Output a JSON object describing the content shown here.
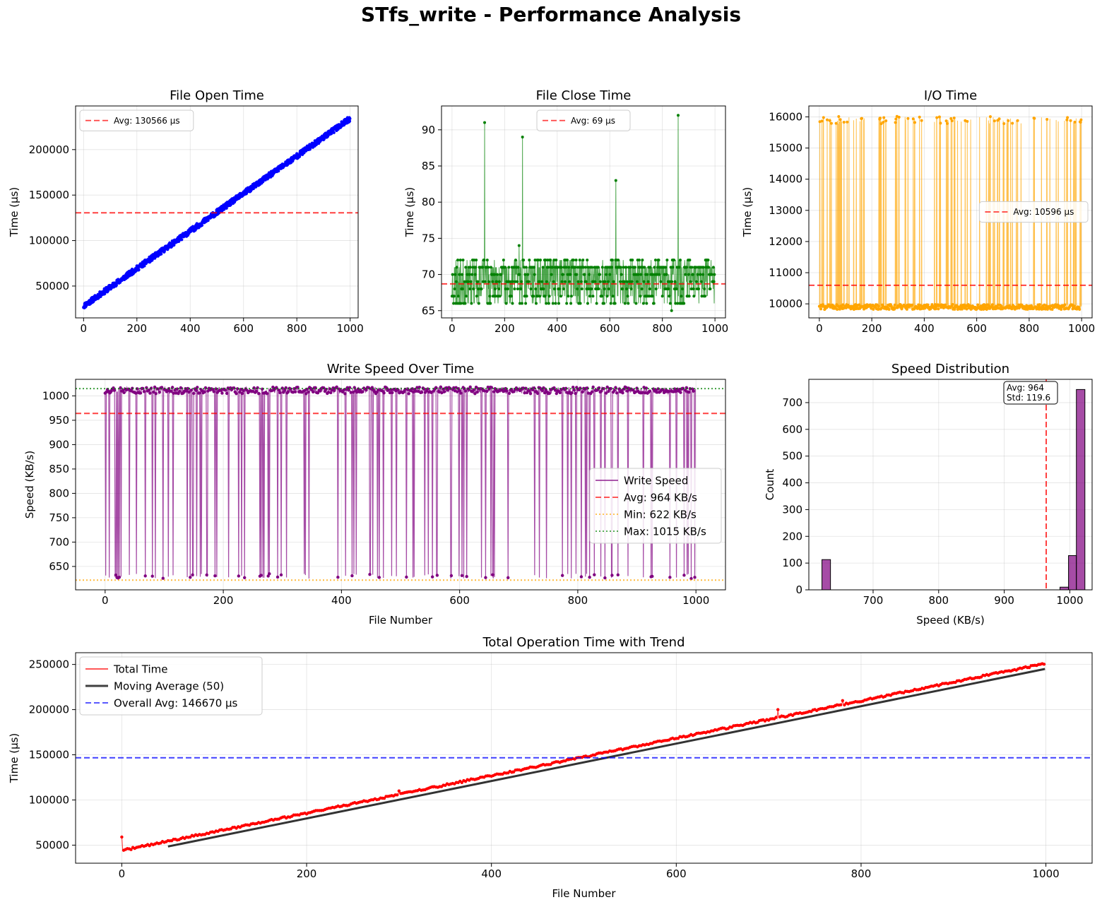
{
  "title": "STfs_write - Performance Analysis",
  "colors": {
    "open": "#0000ff",
    "close": "#008000",
    "io": "#ffa500",
    "speed": "#800080",
    "avg": "#ff0000",
    "min": "#ffa500",
    "max": "#008000",
    "total": "#ff0000",
    "moving": "#000000",
    "overall": "#0000ff",
    "hist": "#800080"
  },
  "chart_data": [
    {
      "id": "open",
      "type": "scatter",
      "title": "File Open Time",
      "xlabel": "",
      "ylabel": "Time (μs)",
      "xlim": [
        -30,
        1030
      ],
      "ylim": [
        15000,
        248000
      ],
      "xticks": [
        0,
        200,
        400,
        600,
        800,
        1000
      ],
      "yticks": [
        50000,
        100000,
        150000,
        200000
      ],
      "xticklabels": [
        "0",
        "200",
        "400",
        "600",
        "800",
        "1000"
      ],
      "yticklabels": [
        "50000",
        "100000",
        "150000",
        "200000"
      ],
      "series": {
        "name": "File Open Time",
        "x_start": 0,
        "x_end": 999,
        "count": 1000,
        "y_start": 28000,
        "y_end": 234000,
        "spread": 6000
      },
      "avg": 130566,
      "legend": [
        {
          "label": "Avg: 130566 μs",
          "style": "dashed",
          "color": "#ff0000"
        }
      ],
      "legend_loc": "upper-left"
    },
    {
      "id": "close",
      "type": "line",
      "title": "File Close Time",
      "xlabel": "",
      "ylabel": "Time (μs)",
      "xlim": [
        -40,
        1040
      ],
      "ylim": [
        64,
        93.3
      ],
      "xticks": [
        0,
        200,
        400,
        600,
        800,
        1000
      ],
      "yticks": [
        65,
        70,
        75,
        80,
        85,
        90
      ],
      "xticklabels": [
        "0",
        "200",
        "400",
        "600",
        "800",
        "1000"
      ],
      "yticklabels": [
        "65",
        "70",
        "75",
        "80",
        "85",
        "90"
      ],
      "series": {
        "name": "File Close Time",
        "count": 1000,
        "levels": [
          66,
          67,
          68,
          69,
          70,
          71,
          72
        ],
        "spikes": [
          [
            124,
            91
          ],
          [
            268,
            89
          ],
          [
            623,
            83
          ],
          [
            860,
            92
          ],
          [
            255,
            74
          ],
          [
            835,
            65
          ]
        ]
      },
      "avg": 68.7,
      "legend": [
        {
          "label": "Avg: 69 μs",
          "style": "dashed",
          "color": "#ff0000"
        }
      ],
      "legend_loc": "upper-center"
    },
    {
      "id": "io",
      "type": "line",
      "title": "I/O Time",
      "xlabel": "",
      "ylabel": "Time (μs)",
      "xlim": [
        -40,
        1040
      ],
      "ylim": [
        9550,
        16350
      ],
      "xticks": [
        0,
        200,
        400,
        600,
        800,
        1000
      ],
      "yticks": [
        10000,
        11000,
        12000,
        13000,
        14000,
        15000,
        16000
      ],
      "xticklabels": [
        "0",
        "200",
        "400",
        "600",
        "800",
        "1000"
      ],
      "yticklabels": [
        "10000",
        "11000",
        "12000",
        "13000",
        "14000",
        "15000",
        "16000"
      ],
      "series": {
        "name": "I/O Time",
        "count": 1000,
        "low": 9900,
        "high": 15850
      },
      "avg": 10596,
      "legend": [
        {
          "label": "Avg: 10596 μs",
          "style": "dashed",
          "color": "#ff0000"
        }
      ],
      "legend_loc": "center-right"
    },
    {
      "id": "speed",
      "type": "line",
      "title": "Write Speed Over Time",
      "xlabel": "File Number",
      "ylabel": "Speed (KB/s)",
      "xlim": [
        -50,
        1050
      ],
      "ylim": [
        602,
        1034
      ],
      "xticks": [
        0,
        200,
        400,
        600,
        800,
        1000
      ],
      "yticks": [
        650,
        700,
        750,
        800,
        850,
        900,
        950,
        1000
      ],
      "xticklabels": [
        "0",
        "200",
        "400",
        "600",
        "800",
        "1000"
      ],
      "yticklabels": [
        "650",
        "700",
        "750",
        "800",
        "850",
        "900",
        "950",
        "1000"
      ],
      "series": {
        "name": "Write Speed",
        "count": 1000,
        "high": 1010,
        "low": 630
      },
      "avg": 964,
      "min": 622,
      "max": 1015,
      "legend": [
        {
          "label": "Write Speed",
          "style": "solid",
          "color": "#800080"
        },
        {
          "label": "Avg: 964 KB/s",
          "style": "dashed",
          "color": "#ff0000"
        },
        {
          "label": "Min: 622 KB/s",
          "style": "dotted",
          "color": "#ffa500"
        },
        {
          "label": "Max: 1015 KB/s",
          "style": "dotted",
          "color": "#008000"
        }
      ],
      "legend_loc": "center-right"
    },
    {
      "id": "hist",
      "type": "bar",
      "title": "Speed Distribution",
      "xlabel": "Speed (KB/s)",
      "ylabel": "Count",
      "xlim": [
        602,
        1034
      ],
      "ylim": [
        0,
        787
      ],
      "xticks": [
        700,
        800,
        900,
        1000
      ],
      "yticks": [
        0,
        100,
        200,
        300,
        400,
        500,
        600,
        700
      ],
      "xticklabels": [
        "700",
        "800",
        "900",
        "1000"
      ],
      "yticklabels": [
        "0",
        "100",
        "200",
        "300",
        "400",
        "500",
        "600",
        "700"
      ],
      "bins": [
        {
          "x0": 622,
          "x1": 635,
          "count": 113
        },
        {
          "x0": 985,
          "x1": 998,
          "count": 10
        },
        {
          "x0": 998,
          "x1": 1010,
          "count": 128
        },
        {
          "x0": 1010,
          "x1": 1023,
          "count": 749
        }
      ],
      "avg": 964,
      "stats_box": {
        "line1": "Avg: 964",
        "line2": "Std: 119.6"
      }
    },
    {
      "id": "total",
      "type": "line",
      "title": "Total Operation Time with Trend",
      "xlabel": "File Number",
      "ylabel": "Time (μs)",
      "xlim": [
        -50,
        1050
      ],
      "ylim": [
        30000,
        263000
      ],
      "xticks": [
        0,
        200,
        400,
        600,
        800,
        1000
      ],
      "yticks": [
        50000,
        100000,
        150000,
        200000,
        250000
      ],
      "xticklabels": [
        "0",
        "200",
        "400",
        "600",
        "800",
        "1000"
      ],
      "yticklabels": [
        "50000",
        "100000",
        "150000",
        "200000",
        "250000"
      ],
      "series": [
        {
          "name": "Total Time",
          "count": 1000,
          "y_start": 44000,
          "y_end": 251000,
          "spikes": [
            [
              0,
              59000
            ],
            [
              300,
              110000
            ],
            [
              710,
              200000
            ],
            [
              780,
              210000
            ]
          ]
        },
        {
          "name": "Moving Average (50)",
          "x_start": 50,
          "x_end": 999,
          "y_start": 48500,
          "y_end": 245000
        }
      ],
      "avg": 146670,
      "legend": [
        {
          "label": "Total Time",
          "style": "solid",
          "color": "#ff0000"
        },
        {
          "label": "Moving Average (50)",
          "style": "solid-thick",
          "color": "#000000"
        },
        {
          "label": "Overall Avg: 146670 μs",
          "style": "dashed",
          "color": "#0000ff"
        }
      ],
      "legend_loc": "upper-left"
    }
  ]
}
